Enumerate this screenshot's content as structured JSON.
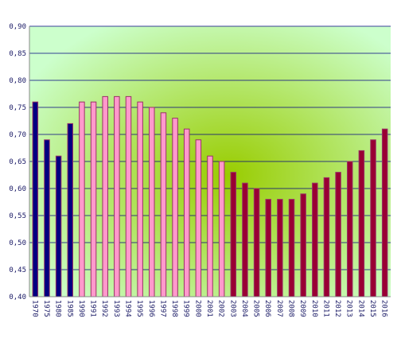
{
  "chart_data": {
    "type": "bar",
    "categories": [
      "1970",
      "1975",
      "1980",
      "1985",
      "1990",
      "1991",
      "1992",
      "1993",
      "1994",
      "1995",
      "1996",
      "1997",
      "1998",
      "1999",
      "2000",
      "2001",
      "2002",
      "2003",
      "2004",
      "2005",
      "2006",
      "2007",
      "2008",
      "2009",
      "2010",
      "2011",
      "2012",
      "2013",
      "2014",
      "2015",
      "2016"
    ],
    "category_labels": [
      "1970",
      "1975",
      "1980",
      "1985",
      "1990",
      "1991",
      "1992",
      "1993",
      "1994",
      "1995",
      "1996",
      "1997",
      "1998",
      "1999",
      "2000",
      "2001",
      "2002",
      "2003",
      "2004",
      "2005",
      "2006",
      "2007",
      "2008",
      "2009",
      "2010",
      "2011",
      "2012",
      "2013",
      "2014",
      "2015",
      "2016"
    ],
    "values": [
      0.76,
      0.69,
      0.66,
      0.72,
      0.76,
      0.76,
      0.77,
      0.77,
      0.77,
      0.76,
      0.75,
      0.74,
      0.73,
      0.71,
      0.69,
      0.66,
      0.65,
      0.63,
      0.61,
      0.6,
      0.58,
      0.58,
      0.58,
      0.59,
      0.61,
      0.62,
      0.63,
      0.65,
      0.67,
      0.69,
      0.71
    ],
    "ylim": [
      0.4,
      0.9
    ],
    "yticks": [
      0.4,
      0.45,
      0.5,
      0.55,
      0.6,
      0.65,
      0.7,
      0.75,
      0.8,
      0.85,
      0.9
    ],
    "ytick_labels": [
      "0,40",
      "0,45",
      "0,50",
      "0,55",
      "0,60",
      "0,65",
      "0,70",
      "0,75",
      "0,80",
      "0,85",
      "0,90"
    ],
    "title": "",
    "xlabel": "",
    "ylabel": "",
    "grid": true,
    "legend": "none",
    "colors": {
      "group1_fill": "#000080",
      "group2_fill": "#ff99cc",
      "group3_fill": "#990033",
      "bar_edge": "#993366",
      "gridline": "#000080",
      "axis": "#888888",
      "bg_center": "#99cc00",
      "bg_edge": "#ccffcc"
    },
    "bar_groups": [
      {
        "from_index": 0,
        "to_index": 3,
        "color_key": "group1_fill"
      },
      {
        "from_index": 4,
        "to_index": 16,
        "color_key": "group2_fill"
      },
      {
        "from_index": 17,
        "to_index": 30,
        "color_key": "group3_fill"
      }
    ]
  }
}
